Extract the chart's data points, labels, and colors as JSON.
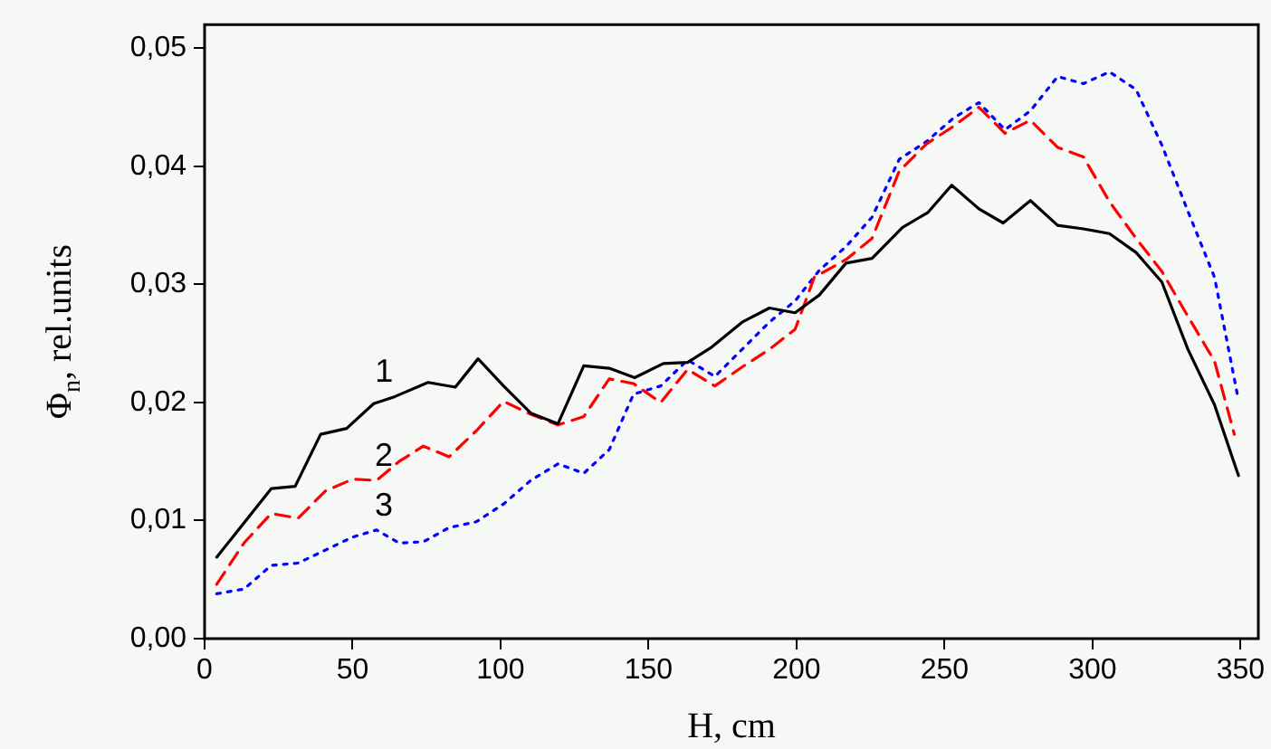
{
  "chart_data": {
    "type": "line",
    "xlabel": "H, cm",
    "ylabel": "Φ$_{n}$, rel.units",
    "xlim": [
      0,
      356
    ],
    "xticks": [
      0,
      50,
      100,
      150,
      200,
      250,
      300,
      350
    ],
    "ylim": [
      0,
      0.052
    ],
    "yticks": [
      {
        "value": 0,
        "label": "0,00"
      },
      {
        "value": 0.01,
        "label": "0,01"
      },
      {
        "value": 0.02,
        "label": "0,02"
      },
      {
        "value": 0.03,
        "label": "0,03"
      },
      {
        "value": 0.04,
        "label": "0,04"
      },
      {
        "value": 0.05,
        "label": "0,05"
      }
    ],
    "series": [
      {
        "color": "#000000",
        "line_style": "solid",
        "x": [
          4.1,
          22.5,
          30.6,
          39.2,
          48,
          57.1,
          64.3,
          75.5,
          84.7,
          92.4,
          101,
          110.2,
          119.4,
          128.1,
          136.7,
          145.3,
          155,
          163.2,
          171.4,
          181.6,
          190.8,
          199.5,
          207.7,
          216.7,
          225.5,
          235.7,
          244.4,
          252.4,
          261.6,
          269.8,
          279,
          288.2,
          296.9,
          305.7,
          314.7,
          323.4,
          332.2,
          341.2,
          349.3
        ],
        "values": [
          0.0069,
          0.0127,
          0.0129,
          0.0173,
          0.0178,
          0.0199,
          0.0205,
          0.0217,
          0.0213,
          0.0237,
          0.0214,
          0.0191,
          0.0182,
          0.0231,
          0.0229,
          0.0221,
          0.0233,
          0.0234,
          0.0247,
          0.0268,
          0.028,
          0.0276,
          0.0291,
          0.0318,
          0.0322,
          0.0348,
          0.0361,
          0.0384,
          0.0364,
          0.0352,
          0.0371,
          0.035,
          0.0347,
          0.0343,
          0.0327,
          0.0302,
          0.0245,
          0.0198,
          0.0138
        ]
      },
      {
        "color": "#ff0000",
        "line_style": "dashed",
        "x": [
          4.1,
          13.3,
          22.5,
          31.6,
          40.8,
          50,
          58.1,
          65.7,
          73.9,
          82.6,
          91.8,
          101,
          110.2,
          119.4,
          128.1,
          136.7,
          144.9,
          154.1,
          163.2,
          172.4,
          181.6,
          190.8,
          199.5,
          206,
          216.7,
          225.5,
          234.7,
          243.9,
          253.1,
          261.6,
          270.4,
          279,
          288.2,
          296.9,
          305.7,
          314.7,
          323.4,
          332.2,
          341.2,
          347.9
        ],
        "values": [
          0.0046,
          0.0081,
          0.0106,
          0.0102,
          0.0125,
          0.0135,
          0.0134,
          0.015,
          0.0163,
          0.0154,
          0.0176,
          0.0201,
          0.019,
          0.0181,
          0.0188,
          0.022,
          0.0216,
          0.02,
          0.0228,
          0.0214,
          0.023,
          0.0245,
          0.0262,
          0.0306,
          0.0321,
          0.0339,
          0.0396,
          0.0419,
          0.0434,
          0.045,
          0.0428,
          0.0439,
          0.0416,
          0.0408,
          0.037,
          0.0339,
          0.0311,
          0.0273,
          0.0235,
          0.0173
        ]
      },
      {
        "color": "#0000ff",
        "line_style": "dotted",
        "x": [
          4.1,
          13.3,
          22.5,
          31.6,
          40.8,
          50,
          58.1,
          65.7,
          73.9,
          82.6,
          91.8,
          101,
          110.2,
          119.4,
          128.1,
          136.7,
          144.9,
          154.1,
          163.2,
          172.4,
          181.6,
          190.8,
          199.5,
          207.7,
          216.7,
          225.5,
          234.7,
          243.9,
          253.1,
          261.6,
          270.4,
          279,
          288.2,
          296.9,
          305.7,
          314.7,
          323.4,
          332.2,
          341.2,
          348.9
        ],
        "values": [
          0.0038,
          0.0042,
          0.0062,
          0.0064,
          0.0075,
          0.0086,
          0.0092,
          0.0081,
          0.0082,
          0.0094,
          0.0099,
          0.0114,
          0.0134,
          0.0148,
          0.014,
          0.016,
          0.0207,
          0.0214,
          0.0236,
          0.0222,
          0.0245,
          0.0268,
          0.0286,
          0.0312,
          0.0332,
          0.0357,
          0.0406,
          0.0421,
          0.0441,
          0.0454,
          0.0431,
          0.0447,
          0.0476,
          0.047,
          0.048,
          0.0465,
          0.0418,
          0.0362,
          0.0306,
          0.0207
        ]
      }
    ],
    "annotations": [
      "1",
      "2",
      "3"
    ]
  }
}
